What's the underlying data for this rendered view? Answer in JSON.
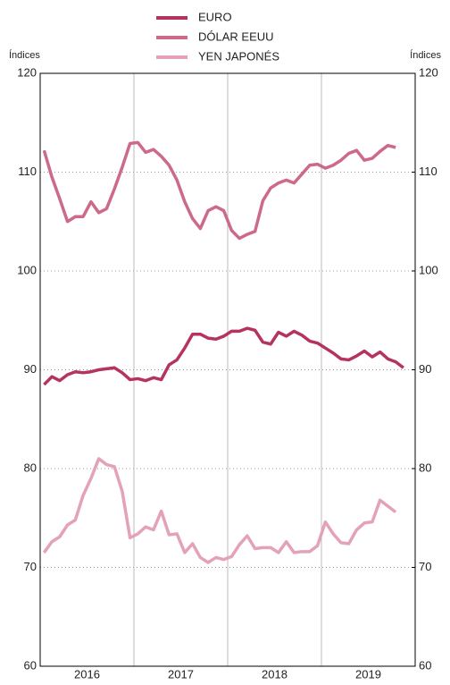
{
  "chart_data": {
    "type": "line",
    "y_label": "Índices",
    "y2_label": "Índices",
    "years": [
      "2016",
      "2017",
      "2018",
      "2019"
    ],
    "months_per_year": 12,
    "ylim": [
      60,
      120
    ],
    "yticks": [
      60,
      70,
      80,
      90,
      100,
      110,
      120
    ],
    "y2lim": [
      60,
      120
    ],
    "y2ticks": [
      60,
      70,
      80,
      90,
      100,
      110,
      120
    ],
    "grid": true,
    "series": [
      {
        "name": "EURO",
        "color": "#b5345e",
        "values": [
          88.5,
          89.3,
          88.9,
          89.5,
          89.8,
          89.7,
          89.8,
          90.0,
          90.1,
          90.2,
          89.7,
          89.0,
          89.1,
          88.9,
          89.2,
          89.0,
          90.5,
          91.0,
          92.2,
          93.6,
          93.6,
          93.2,
          93.1,
          93.4,
          93.9,
          93.9,
          94.2,
          94.0,
          92.8,
          92.6,
          93.8,
          93.4,
          93.9,
          93.5,
          92.9,
          92.7,
          92.2,
          91.7,
          91.1,
          91.0,
          91.4,
          91.9,
          91.3,
          91.8,
          91.1,
          90.8,
          90.2
        ]
      },
      {
        "name": "DÓLAR EEUU",
        "color": "#cc6a88",
        "values": [
          112.2,
          109.5,
          107.3,
          105.0,
          105.5,
          105.5,
          107.0,
          105.9,
          106.3,
          108.3,
          110.5,
          112.9,
          113.0,
          112.0,
          112.3,
          111.6,
          110.7,
          109.2,
          107.0,
          105.3,
          104.3,
          106.1,
          106.5,
          106.1,
          104.1,
          103.3,
          103.7,
          104.0,
          107.1,
          108.4,
          108.9,
          109.2,
          108.9,
          109.8,
          110.7,
          110.8,
          110.4,
          110.7,
          111.2,
          111.9,
          112.2,
          111.2,
          111.4,
          112.1,
          112.7,
          112.5,
          null
        ]
      },
      {
        "name": "YEN JAPONÉS",
        "color": "#e4a2b8",
        "values": [
          71.5,
          72.6,
          73.1,
          74.3,
          74.8,
          77.3,
          79.0,
          81.0,
          80.4,
          80.2,
          77.7,
          73.0,
          73.4,
          74.1,
          73.8,
          75.7,
          73.3,
          73.4,
          71.5,
          72.4,
          71.0,
          70.5,
          71.0,
          70.8,
          71.1,
          72.3,
          73.2,
          71.9,
          72.0,
          72.0,
          71.5,
          72.6,
          71.5,
          71.6,
          71.6,
          72.2,
          74.6,
          73.4,
          72.5,
          72.4,
          73.8,
          74.5,
          74.6,
          76.8,
          76.2,
          75.6,
          null
        ]
      }
    ]
  }
}
